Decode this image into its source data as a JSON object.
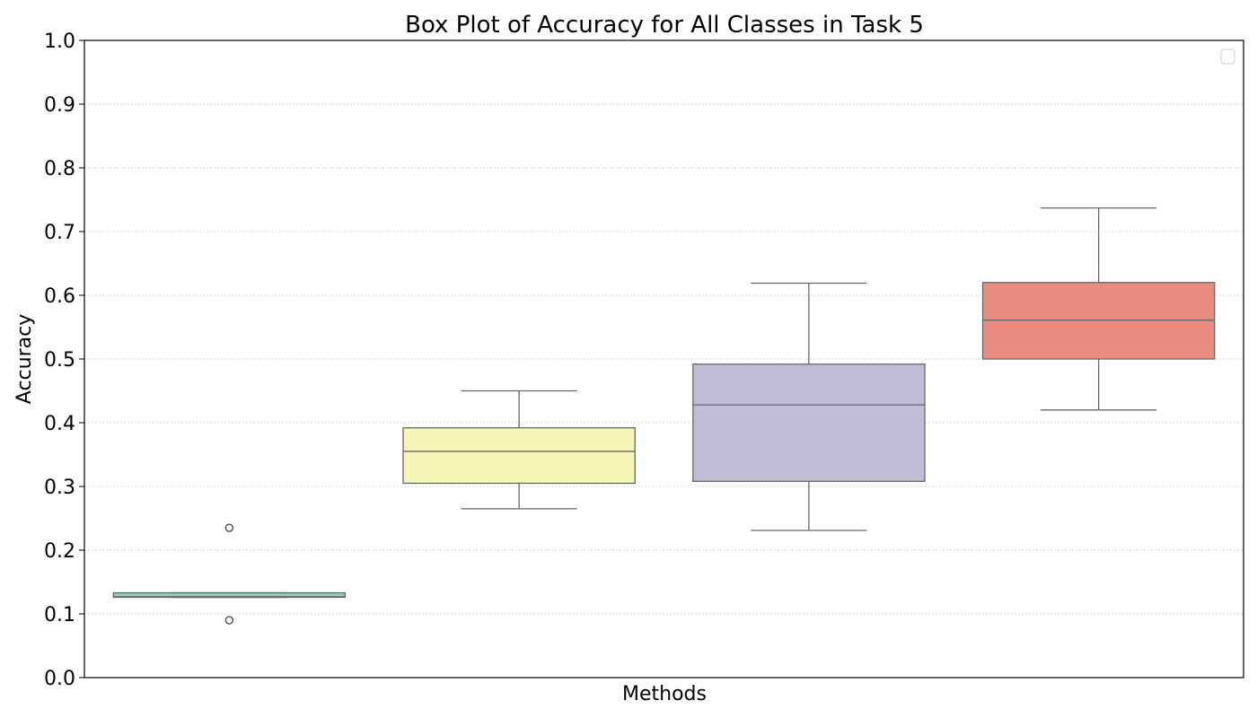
{
  "chart_data": {
    "type": "box",
    "title": "Box Plot of Accuracy for All Classes in Task 5",
    "xlabel": "Methods",
    "ylabel": "Accuracy",
    "ylim": [
      0.0,
      1.0
    ],
    "yticks": [
      "0.0",
      "0.1",
      "0.2",
      "0.3",
      "0.4",
      "0.5",
      "0.6",
      "0.7",
      "0.8",
      "0.9",
      "1.0"
    ],
    "grid": "horizontal dotted",
    "legend": {
      "placement": "top-right",
      "entries": []
    },
    "series": [
      {
        "color": "#8dd3c7",
        "whisker_low": 0.126,
        "q1": 0.126,
        "median": 0.127,
        "q3": 0.133,
        "whisker_high": 0.133,
        "outliers": [
          0.235,
          0.09
        ]
      },
      {
        "color": "#f7f6b9",
        "whisker_low": 0.265,
        "q1": 0.305,
        "median": 0.355,
        "q3": 0.392,
        "whisker_high": 0.45,
        "outliers": []
      },
      {
        "color": "#c1bdd6",
        "whisker_low": 0.231,
        "q1": 0.308,
        "median": 0.428,
        "q3": 0.492,
        "whisker_high": 0.619,
        "outliers": []
      },
      {
        "color": "#ea8d81",
        "whisker_low": 0.42,
        "q1": 0.5,
        "median": 0.561,
        "q3": 0.62,
        "whisker_high": 0.737,
        "outliers": []
      }
    ]
  }
}
